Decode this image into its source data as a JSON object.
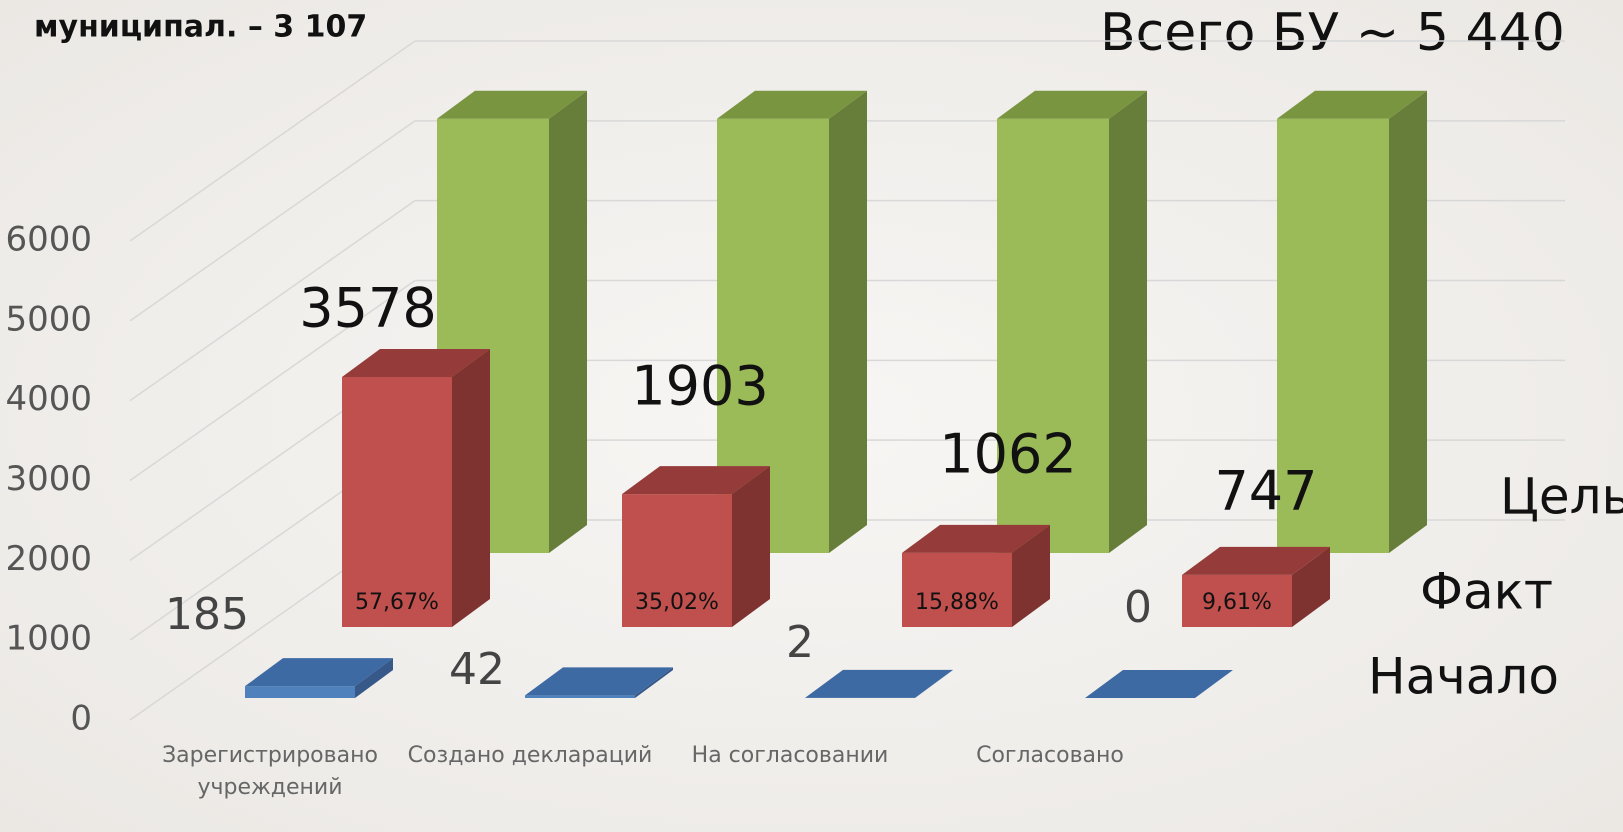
{
  "chart_data": {
    "type": "bar3d",
    "title": "Всего БУ  ~ 5 440",
    "subtitle": "муниципал. – 3 107",
    "categories": [
      "Зарегистрировано учреждений",
      "Создано деклараций",
      "На согласовании",
      "Согласовано"
    ],
    "series": [
      {
        "name": "Начало",
        "color": "#4f81bd",
        "values": [
          185,
          42,
          2,
          0
        ]
      },
      {
        "name": "Факт",
        "color": "#c0504d",
        "values": [
          3578,
          1903,
          1062,
          747
        ],
        "share_labels": [
          "57,67%",
          "35,02%",
          "15,88%",
          "9,61%"
        ]
      },
      {
        "name": "Цель",
        "color": "#9bbb59",
        "values": [
          5440,
          5440,
          5440,
          5440
        ]
      }
    ],
    "ylim": [
      0,
      6000
    ],
    "yticks": [
      0,
      1000,
      2000,
      3000,
      4000,
      5000,
      6000
    ],
    "grid": true
  }
}
